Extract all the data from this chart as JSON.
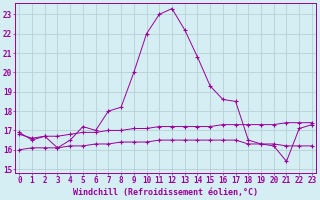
{
  "xlabel": "Windchill (Refroidissement éolien,°C)",
  "x": [
    0,
    1,
    2,
    3,
    4,
    5,
    6,
    7,
    8,
    9,
    10,
    11,
    12,
    13,
    14,
    15,
    16,
    17,
    18,
    19,
    20,
    21,
    22,
    23
  ],
  "line1": [
    16.9,
    16.5,
    16.7,
    16.1,
    16.5,
    17.2,
    17.0,
    18.0,
    18.2,
    20.0,
    22.0,
    23.0,
    23.3,
    22.2,
    20.8,
    19.3,
    18.6,
    18.5,
    16.5,
    16.3,
    16.2,
    15.4,
    17.1,
    17.3
  ],
  "line2": [
    16.8,
    16.6,
    16.7,
    16.7,
    16.8,
    16.9,
    16.9,
    17.0,
    17.0,
    17.1,
    17.1,
    17.2,
    17.2,
    17.2,
    17.2,
    17.2,
    17.3,
    17.3,
    17.3,
    17.3,
    17.3,
    17.4,
    17.4,
    17.4
  ],
  "line3": [
    16.0,
    16.1,
    16.1,
    16.1,
    16.2,
    16.2,
    16.3,
    16.3,
    16.4,
    16.4,
    16.4,
    16.5,
    16.5,
    16.5,
    16.5,
    16.5,
    16.5,
    16.5,
    16.3,
    16.3,
    16.3,
    16.2,
    16.2,
    16.2
  ],
  "line_color": "#990099",
  "bg_color": "#d4eef4",
  "grid_color": "#b0cccc",
  "ylim": [
    14.8,
    23.6
  ],
  "yticks": [
    15,
    16,
    17,
    18,
    19,
    20,
    21,
    22,
    23
  ],
  "xticks": [
    0,
    1,
    2,
    3,
    4,
    5,
    6,
    7,
    8,
    9,
    10,
    11,
    12,
    13,
    14,
    15,
    16,
    17,
    18,
    19,
    20,
    21,
    22,
    23
  ],
  "tick_fontsize": 5.5,
  "xlabel_fontsize": 6.0,
  "marker": "+"
}
